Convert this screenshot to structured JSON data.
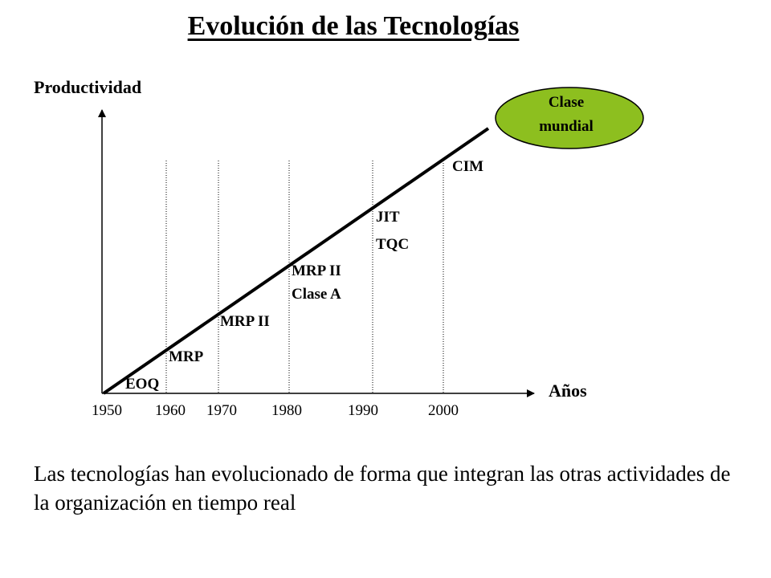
{
  "title": "Evolución de las Tecnologías",
  "y_axis_label": "Productividad",
  "x_axis_label": "Años",
  "year_ticks": [
    "1950",
    "1960",
    "1970",
    "1980",
    "1990",
    "2000"
  ],
  "technologies": [
    {
      "id": "eoq",
      "lines": [
        "EOQ"
      ]
    },
    {
      "id": "mrp",
      "lines": [
        "MRP"
      ]
    },
    {
      "id": "mrp2",
      "lines": [
        "MRP II"
      ]
    },
    {
      "id": "mrp2a",
      "lines": [
        "MRP II",
        "Clase A"
      ]
    },
    {
      "id": "jit",
      "lines": [
        "JIT",
        "TQC"
      ]
    },
    {
      "id": "cim",
      "lines": [
        "CIM"
      ]
    }
  ],
  "world_class": {
    "lines": [
      "Clase",
      "mundial"
    ],
    "fill": "#8dbf1f"
  },
  "caption": "Las tecnologías han evolucionado de forma que integran las otras actividades de la organización en tiempo real"
}
